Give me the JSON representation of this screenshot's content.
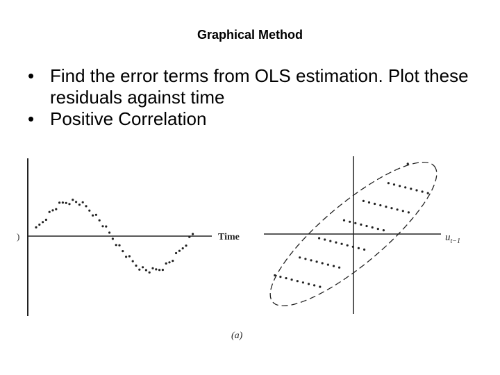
{
  "slide": {
    "title": "Graphical Method",
    "bullets": [
      {
        "bullet_char": "•",
        "text": "Find the error terms from OLS estimation. Plot these residuals against time"
      },
      {
        "bullet_char": "•",
        "text": "Positive Correlation"
      }
    ]
  },
  "figure": {
    "left_plot": {
      "axis_label_x": "Time",
      "axis_label_y_fragment": ")"
    },
    "right_plot": {
      "axis_label_x_main": "u",
      "axis_label_x_sub": "t−1"
    },
    "caption": "(a)",
    "colors": {
      "ink": "#222222",
      "background": "#ffffff"
    }
  }
}
